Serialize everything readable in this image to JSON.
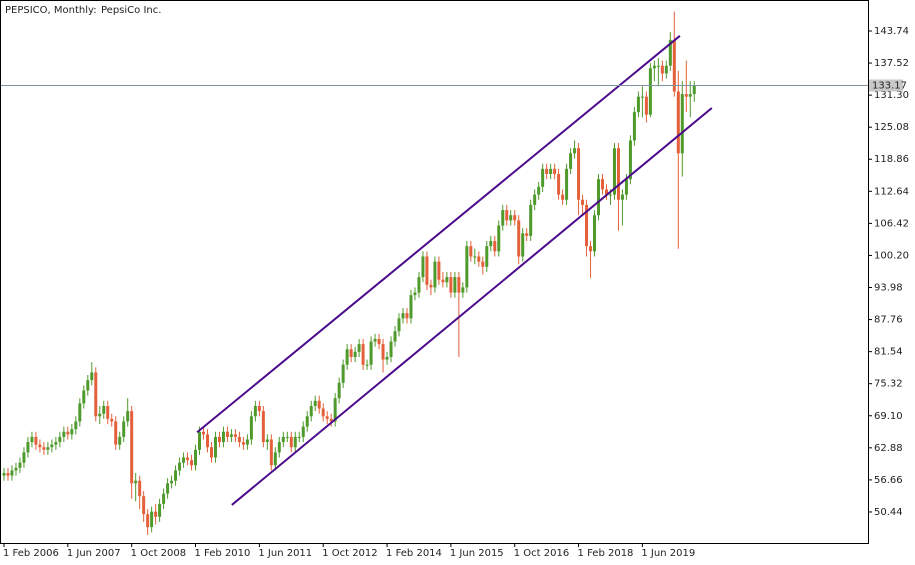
{
  "chart_data": {
    "type": "candlestick",
    "title": "PEPSICO, Monthly:",
    "subtitle": "PepsiCo Inc.",
    "up_color": "#4f9a2c",
    "down_color": "#e4603a",
    "trend_color": "#4b0a8c",
    "current_price": 133.17,
    "ylim": [
      44.42,
      149.75
    ],
    "yticks": [
      50.44,
      56.66,
      62.88,
      {
        "value": 69.1,
        "label": "69.10"
      },
      75.32,
      81.54,
      87.76,
      93.98,
      {
        "value": 100.2,
        "label": "100.20"
      },
      106.42,
      112.64,
      118.86,
      125.08,
      {
        "value": 131.3,
        "label": "131.30"
      },
      137.52,
      143.74
    ],
    "trendlines": [
      {
        "from": [
          48.4,
          65.9
        ],
        "to": [
          169.4,
          142.8
        ]
      },
      {
        "from": [
          57.1,
          51.8
        ],
        "to": [
          177.4,
          128.8
        ]
      }
    ],
    "categories": [
      "1 Feb 2006",
      null,
      null,
      null,
      null,
      null,
      null,
      null,
      null,
      null,
      null,
      null,
      null,
      null,
      null,
      null,
      "1 Jun 2007",
      null,
      null,
      null,
      null,
      null,
      null,
      null,
      null,
      null,
      null,
      null,
      null,
      null,
      null,
      null,
      "1 Oct 2008",
      null,
      null,
      null,
      null,
      null,
      null,
      null,
      null,
      null,
      null,
      null,
      null,
      null,
      null,
      null,
      "1 Feb 2010",
      null,
      null,
      null,
      null,
      null,
      null,
      null,
      null,
      null,
      null,
      null,
      null,
      null,
      null,
      null,
      "1 Jun 2011",
      null,
      null,
      null,
      null,
      null,
      null,
      null,
      null,
      null,
      null,
      null,
      null,
      null,
      null,
      null,
      "1 Oct 2012",
      null,
      null,
      null,
      null,
      null,
      null,
      null,
      null,
      null,
      null,
      null,
      null,
      null,
      null,
      null,
      "1 Feb 2014",
      null,
      null,
      null,
      null,
      null,
      null,
      null,
      null,
      null,
      null,
      null,
      null,
      null,
      null,
      null,
      "1 Jun 2015",
      null,
      null,
      null,
      null,
      null,
      null,
      null,
      null,
      null,
      null,
      null,
      null,
      null,
      null,
      null,
      "1 Oct 2016",
      null,
      null,
      null,
      null,
      null,
      null,
      null,
      null,
      null,
      null,
      null,
      null,
      null,
      null,
      null,
      "1 Feb 2018",
      null,
      null,
      null,
      null,
      null,
      null,
      null,
      null,
      null,
      null,
      null,
      null,
      null,
      null,
      null,
      "1 Jun 2019",
      null,
      null,
      null,
      null,
      null,
      null,
      null,
      null,
      null,
      null,
      null,
      null,
      null
    ],
    "open": [
      57.5,
      58,
      57.5,
      58.5,
      59,
      60,
      62,
      64,
      65,
      63.5,
      63,
      62.5,
      63,
      63.5,
      64,
      65,
      66,
      65.5,
      66.5,
      68,
      71.5,
      74,
      76,
      77.5,
      69,
      69.5,
      71,
      68.5,
      68,
      63.5,
      65,
      68,
      70,
      56,
      56.5,
      53.5,
      50,
      47.5,
      50.5,
      49.5,
      52,
      54,
      56,
      56.5,
      58.5,
      60,
      61,
      60.5,
      59.5,
      62.5,
      66,
      65.5,
      63,
      61,
      65,
      64,
      66,
      65,
      65.5,
      65,
      64,
      63.5,
      64.5,
      69,
      71,
      70,
      64,
      64.5,
      59.5,
      62,
      64,
      65,
      65,
      63,
      65,
      65,
      67,
      69,
      71,
      72,
      70.5,
      69,
      68.5,
      68,
      72.5,
      75.5,
      79,
      82,
      80.5,
      81.5,
      83,
      79,
      79,
      83.5,
      84,
      83,
      80,
      80.5,
      83.5,
      85.5,
      88,
      89,
      88,
      92.5,
      93,
      96,
      100,
      94.5,
      94,
      99,
      95.5,
      95,
      96,
      93,
      96,
      93,
      94,
      102,
      100,
      100,
      99,
      98,
      102,
      103,
      101,
      106,
      109,
      107,
      108,
      107,
      100,
      104.5,
      104,
      110,
      112,
      113.5,
      117,
      116,
      117,
      116,
      112,
      111,
      117,
      120,
      121,
      111,
      110,
      102,
      101,
      108,
      115,
      113,
      112,
      112,
      121,
      111,
      112,
      115,
      122.5,
      128,
      131,
      131,
      127.5,
      136.5,
      137,
      137,
      135.5,
      137,
      142,
      132,
      120,
      131.5,
      131,
      131.5
    ],
    "high": [
      59,
      59,
      59.5,
      60,
      61,
      63,
      65,
      66,
      66,
      64.5,
      64,
      64,
      64.5,
      65,
      66,
      67,
      67,
      67.5,
      69,
      72.5,
      75,
      77,
      79.5,
      78.5,
      71,
      72,
      72,
      69.5,
      69,
      66,
      69,
      72.5,
      71,
      58,
      57.5,
      54.5,
      51,
      51.5,
      52,
      53,
      55,
      57,
      57.5,
      59.5,
      61,
      62,
      62,
      61.5,
      63.5,
      67,
      67,
      66.5,
      64,
      66,
      66,
      67,
      67,
      66.5,
      66.5,
      66,
      65,
      65.5,
      70,
      72,
      72,
      71,
      65.5,
      65.5,
      63,
      65,
      66,
      66,
      66,
      66,
      66,
      68,
      70,
      72,
      73,
      73,
      71.5,
      70,
      69.5,
      73.5,
      76.5,
      80,
      83,
      83,
      82.5,
      84,
      84,
      80,
      84.5,
      85,
      85,
      84,
      81.5,
      84.5,
      86.5,
      89,
      90,
      90,
      93.5,
      94,
      97,
      101,
      101,
      95.5,
      100,
      100,
      97,
      97,
      97,
      97,
      97,
      95,
      103,
      103,
      101.5,
      101,
      100,
      103,
      104,
      104,
      107,
      110,
      110,
      109,
      109,
      108,
      105.5,
      105.5,
      111,
      113,
      114.5,
      118,
      118,
      118,
      118,
      117,
      113,
      118,
      121,
      122.5,
      122,
      112,
      111,
      103,
      109,
      116,
      116,
      114,
      113,
      122,
      122,
      113,
      116,
      123.5,
      129,
      132,
      133,
      132,
      137.5,
      138,
      138.5,
      138,
      138,
      143.5,
      147.5,
      136,
      134,
      138,
      134,
      134
    ],
    "low": [
      56.5,
      56.5,
      56.5,
      57.5,
      58,
      59,
      61,
      63,
      62.5,
      62,
      61.5,
      61.5,
      62,
      62.5,
      63,
      64,
      64.5,
      64.5,
      65.5,
      67,
      70.5,
      73,
      75,
      68,
      67.5,
      68.5,
      67.5,
      67,
      62.5,
      62.5,
      64,
      67,
      53,
      52.5,
      51,
      48.5,
      46,
      46.5,
      48,
      48.5,
      51,
      53,
      55,
      55.5,
      57.5,
      59,
      59.5,
      58.5,
      58.5,
      61.5,
      64.5,
      62,
      60,
      60,
      63,
      63,
      64,
      64,
      64,
      63,
      62.5,
      62.5,
      63.5,
      68,
      69,
      63,
      62.5,
      58.5,
      58.5,
      61,
      63,
      64,
      62,
      62,
      64,
      64,
      66,
      68,
      70,
      69.5,
      68,
      67.5,
      67,
      67,
      71.5,
      74.5,
      78,
      79.5,
      79.5,
      80.5,
      78,
      78,
      78,
      82.5,
      82,
      77.5,
      79,
      79.5,
      82.5,
      84.5,
      87,
      87,
      87,
      91.5,
      92,
      95,
      93.5,
      92.5,
      93,
      94.5,
      94,
      94,
      92,
      92,
      80.5,
      92,
      93,
      99,
      98.5,
      98,
      96.5,
      97,
      101,
      100,
      100,
      105,
      106,
      106,
      106,
      98.5,
      99,
      103,
      103,
      109,
      111,
      112.5,
      115,
      115,
      115,
      111,
      110,
      110,
      116,
      119,
      108,
      108,
      100,
      95.8,
      100,
      107,
      112,
      111,
      110,
      111,
      105,
      106,
      111,
      114,
      121.5,
      127,
      127,
      126,
      127,
      134,
      133,
      134,
      134.5,
      136,
      131,
      101.5,
      115.5,
      128,
      127,
      130
    ],
    "close": [
      58,
      57.5,
      58.5,
      59,
      60,
      62,
      64,
      65,
      63.5,
      63,
      62.5,
      63,
      63.5,
      64,
      65,
      66,
      65.5,
      66.5,
      68,
      71.5,
      74,
      76,
      77.5,
      69,
      69.5,
      71,
      68.5,
      68,
      63.5,
      65,
      68,
      70,
      56,
      56.5,
      53.5,
      50,
      47.5,
      50.5,
      49.5,
      52,
      54,
      56,
      56.5,
      58.5,
      60,
      61,
      60.5,
      59.5,
      62.5,
      66,
      65.5,
      63,
      61,
      65,
      64,
      66,
      65,
      65.5,
      65,
      64,
      63.5,
      64.5,
      69,
      71,
      70,
      64,
      64.5,
      59.5,
      62,
      64,
      65,
      65,
      63,
      65,
      65,
      67,
      69,
      71,
      72,
      70.5,
      69,
      68.5,
      68,
      72.5,
      75.5,
      79,
      82,
      80.5,
      81.5,
      83,
      79,
      79,
      83.5,
      84,
      83,
      80,
      80.5,
      83.5,
      85.5,
      88,
      89,
      88,
      92.5,
      93,
      96,
      100,
      94.5,
      94,
      99,
      95.5,
      95,
      96,
      93,
      96,
      93,
      94,
      102,
      100,
      100,
      99,
      98,
      102,
      103,
      101,
      106,
      109,
      107,
      108,
      107,
      100,
      104.5,
      104,
      110,
      112,
      113.5,
      117,
      116,
      117,
      116,
      112,
      111,
      117,
      120,
      121,
      111,
      110,
      102,
      101,
      108,
      115,
      113,
      112,
      112,
      121,
      111,
      112,
      115,
      122.5,
      128,
      131,
      131,
      127.5,
      136.5,
      137,
      137,
      135.5,
      137,
      142,
      132,
      120,
      131.5,
      131,
      131.5,
      133.17
    ]
  }
}
